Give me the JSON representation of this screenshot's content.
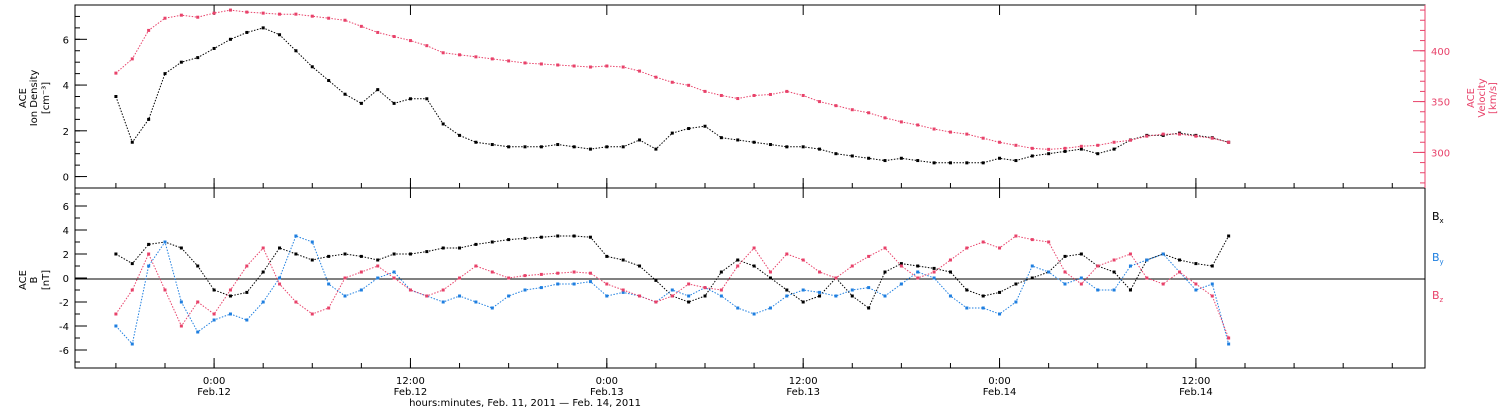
{
  "chart_data": [
    {
      "type": "scatter",
      "panel": "top",
      "ylabel_left": [
        "ACE",
        "Ion Density",
        "[cm⁻³]"
      ],
      "ylabel_right": [
        "ACE",
        "Velocity",
        "[km/s]"
      ],
      "ylim_left": [
        -0.5,
        7.5
      ],
      "yticks_left": [
        0,
        2,
        4,
        6
      ],
      "ylim_right": [
        265,
        445
      ],
      "yticks_right": [
        300,
        350,
        400
      ],
      "series": [
        {
          "axis": "left",
          "color": "#000000",
          "x": [
            -6,
            -5,
            -4,
            -3,
            -2,
            -1,
            0,
            1,
            2,
            3,
            4,
            5,
            6,
            7,
            8,
            9,
            10,
            11,
            12,
            13,
            14,
            15,
            16,
            17,
            18,
            19,
            20,
            21,
            22,
            23,
            24,
            25,
            26,
            27,
            28,
            29,
            30,
            31,
            32,
            33,
            34,
            35,
            36,
            37,
            38,
            39,
            40,
            41,
            42,
            43,
            44,
            45,
            46,
            47,
            48,
            49,
            50,
            51,
            52,
            53,
            54,
            55,
            56,
            57,
            58,
            59,
            60,
            61,
            62
          ],
          "values": [
            3.5,
            1.5,
            2.5,
            4.5,
            5.0,
            5.2,
            5.6,
            6.0,
            6.3,
            6.5,
            6.2,
            5.5,
            4.8,
            4.2,
            3.6,
            3.2,
            3.8,
            3.2,
            3.4,
            3.4,
            2.3,
            1.8,
            1.5,
            1.4,
            1.3,
            1.3,
            1.3,
            1.4,
            1.3,
            1.2,
            1.3,
            1.3,
            1.6,
            1.2,
            1.9,
            2.1,
            2.2,
            1.7,
            1.6,
            1.5,
            1.4,
            1.3,
            1.3,
            1.2,
            1.0,
            0.9,
            0.8,
            0.7,
            0.8,
            0.7,
            0.6,
            0.6,
            0.6,
            0.6,
            0.8,
            0.7,
            0.9,
            1.0,
            1.1,
            1.2,
            1.0,
            1.2,
            1.6,
            1.8,
            1.8,
            1.9,
            1.8,
            1.7,
            1.5
          ]
        },
        {
          "axis": "right",
          "color": "#e8426a",
          "x": [
            -6,
            -5,
            -4,
            -3,
            -2,
            -1,
            0,
            1,
            2,
            3,
            4,
            5,
            6,
            7,
            8,
            9,
            10,
            11,
            12,
            13,
            14,
            15,
            16,
            17,
            18,
            19,
            20,
            21,
            22,
            23,
            24,
            25,
            26,
            27,
            28,
            29,
            30,
            31,
            32,
            33,
            34,
            35,
            36,
            37,
            38,
            39,
            40,
            41,
            42,
            43,
            44,
            45,
            46,
            47,
            48,
            49,
            50,
            51,
            52,
            53,
            54,
            55,
            56,
            57,
            58,
            59,
            60,
            61,
            62
          ],
          "values": [
            378,
            392,
            420,
            432,
            435,
            433,
            437,
            440,
            438,
            437,
            436,
            436,
            434,
            432,
            430,
            424,
            418,
            414,
            410,
            405,
            398,
            396,
            394,
            392,
            390,
            388,
            387,
            386,
            385,
            384,
            385,
            384,
            380,
            374,
            369,
            366,
            360,
            356,
            353,
            356,
            357,
            360,
            356,
            350,
            346,
            342,
            339,
            334,
            330,
            327,
            323,
            320,
            318,
            314,
            310,
            307,
            304,
            303,
            304,
            306,
            307,
            310,
            312,
            316,
            318,
            318,
            316,
            314,
            310
          ]
        }
      ]
    },
    {
      "type": "scatter",
      "panel": "bottom",
      "ylabel_left": [
        "ACE",
        "B",
        "[nT]"
      ],
      "ylim": [
        -7.5,
        7.5
      ],
      "yticks": [
        -6,
        -4,
        -2,
        0,
        2,
        4,
        6
      ],
      "legend": [
        {
          "name": "B",
          "sub": "x",
          "color": "#000000"
        },
        {
          "name": "B",
          "sub": "y",
          "color": "#1f7fe0"
        },
        {
          "name": "B",
          "sub": "z",
          "color": "#e8426a"
        }
      ],
      "series": [
        {
          "name": "Bx",
          "color": "#000000",
          "x": [
            -6,
            -5,
            -4,
            -3,
            -2,
            -1,
            0,
            1,
            2,
            3,
            4,
            5,
            6,
            7,
            8,
            9,
            10,
            11,
            12,
            13,
            14,
            15,
            16,
            17,
            18,
            19,
            20,
            21,
            22,
            23,
            24,
            25,
            26,
            27,
            28,
            29,
            30,
            31,
            32,
            33,
            34,
            35,
            36,
            37,
            38,
            39,
            40,
            41,
            42,
            43,
            44,
            45,
            46,
            47,
            48,
            49,
            50,
            51,
            52,
            53,
            54,
            55,
            56,
            57,
            58,
            59,
            60,
            61,
            62
          ],
          "values": [
            2.0,
            1.2,
            2.8,
            3.0,
            2.5,
            1.0,
            -1.0,
            -1.5,
            -1.2,
            0.5,
            2.5,
            2.0,
            1.5,
            1.8,
            2.0,
            1.8,
            1.5,
            2.0,
            2.0,
            2.2,
            2.5,
            2.5,
            2.8,
            3.0,
            3.2,
            3.3,
            3.4,
            3.5,
            3.5,
            3.4,
            1.8,
            1.5,
            1.0,
            -0.2,
            -1.5,
            -2.0,
            -1.5,
            0.5,
            1.5,
            1.0,
            0.0,
            -1.0,
            -2.0,
            -1.5,
            0.0,
            -1.5,
            -2.5,
            0.5,
            1.2,
            1.0,
            0.8,
            0.5,
            -1.0,
            -1.5,
            -1.2,
            -0.5,
            0.0,
            0.5,
            1.8,
            2.0,
            1.0,
            0.5,
            -1.0,
            1.5,
            2.0,
            1.5,
            1.2,
            1.0,
            3.5
          ]
        },
        {
          "name": "By",
          "color": "#1f7fe0",
          "x": [
            -6,
            -5,
            -4,
            -3,
            -2,
            -1,
            0,
            1,
            2,
            3,
            4,
            5,
            6,
            7,
            8,
            9,
            10,
            11,
            12,
            13,
            14,
            15,
            16,
            17,
            18,
            19,
            20,
            21,
            22,
            23,
            24,
            25,
            26,
            27,
            28,
            29,
            30,
            31,
            32,
            33,
            34,
            35,
            36,
            37,
            38,
            39,
            40,
            41,
            42,
            43,
            44,
            45,
            46,
            47,
            48,
            49,
            50,
            51,
            52,
            53,
            54,
            55,
            56,
            57,
            58,
            59,
            60,
            61,
            62
          ],
          "values": [
            -4.0,
            -5.5,
            1.0,
            3.0,
            -2.0,
            -4.5,
            -3.5,
            -3.0,
            -3.5,
            -2.0,
            0.0,
            3.5,
            3.0,
            -0.5,
            -1.5,
            -1.0,
            0.0,
            0.5,
            -1.0,
            -1.5,
            -2.0,
            -1.5,
            -2.0,
            -2.5,
            -1.5,
            -1.0,
            -0.8,
            -0.5,
            -0.5,
            -0.3,
            -1.5,
            -1.2,
            -1.5,
            -2.0,
            -1.0,
            -1.5,
            -0.8,
            -1.5,
            -2.5,
            -3.0,
            -2.5,
            -1.5,
            -1.0,
            -1.2,
            -1.5,
            -1.0,
            -0.8,
            -1.5,
            -0.5,
            0.5,
            0.0,
            -1.5,
            -2.5,
            -2.5,
            -3.0,
            -2.0,
            1.0,
            0.5,
            -0.5,
            0.0,
            -1.0,
            -1.0,
            1.0,
            1.5,
            2.0,
            0.5,
            -1.0,
            -0.5,
            -5.5
          ]
        },
        {
          "name": "Bz",
          "color": "#e8426a",
          "x": [
            -6,
            -5,
            -4,
            -3,
            -2,
            -1,
            0,
            1,
            2,
            3,
            4,
            5,
            6,
            7,
            8,
            9,
            10,
            11,
            12,
            13,
            14,
            15,
            16,
            17,
            18,
            19,
            20,
            21,
            22,
            23,
            24,
            25,
            26,
            27,
            28,
            29,
            30,
            31,
            32,
            33,
            34,
            35,
            36,
            37,
            38,
            39,
            40,
            41,
            42,
            43,
            44,
            45,
            46,
            47,
            48,
            49,
            50,
            51,
            52,
            53,
            54,
            55,
            56,
            57,
            58,
            59,
            60,
            61,
            62
          ],
          "values": [
            -3.0,
            -1.0,
            2.0,
            -1.0,
            -4.0,
            -2.0,
            -3.0,
            -1.0,
            1.0,
            2.5,
            -0.5,
            -2.0,
            -3.0,
            -2.5,
            0.0,
            0.5,
            1.0,
            0.0,
            -1.0,
            -1.5,
            -1.0,
            0.0,
            1.0,
            0.5,
            0.0,
            0.2,
            0.3,
            0.4,
            0.5,
            0.4,
            -0.5,
            -1.0,
            -1.5,
            -2.0,
            -1.5,
            -0.5,
            -0.8,
            -1.0,
            1.0,
            2.5,
            0.5,
            2.0,
            1.5,
            0.5,
            0.0,
            1.0,
            1.8,
            2.5,
            1.0,
            0.0,
            0.5,
            1.5,
            2.5,
            3.0,
            2.5,
            3.5,
            3.2,
            3.0,
            0.5,
            -0.5,
            1.0,
            1.5,
            2.0,
            0.0,
            -0.5,
            0.5,
            -0.5,
            -1.5,
            -5.0
          ]
        }
      ]
    }
  ],
  "x_axis": {
    "xlim": [
      -8.5,
      74
    ],
    "ticks": [
      0,
      12,
      24,
      36,
      48,
      60
    ],
    "tick_labels": [
      [
        "0:00",
        "Feb.12"
      ],
      [
        "12:00",
        "Feb.12"
      ],
      [
        "0:00",
        "Feb.13"
      ],
      [
        "12:00",
        "Feb.13"
      ],
      [
        "0:00",
        "Feb.14"
      ],
      [
        "12:00",
        "Feb.14"
      ]
    ],
    "xlabel": "hours:minutes, Feb. 11, 2011 — Feb. 14, 2011"
  },
  "colors": {
    "black": "#000000",
    "pink": "#e8426a",
    "blue": "#1f7fe0"
  }
}
